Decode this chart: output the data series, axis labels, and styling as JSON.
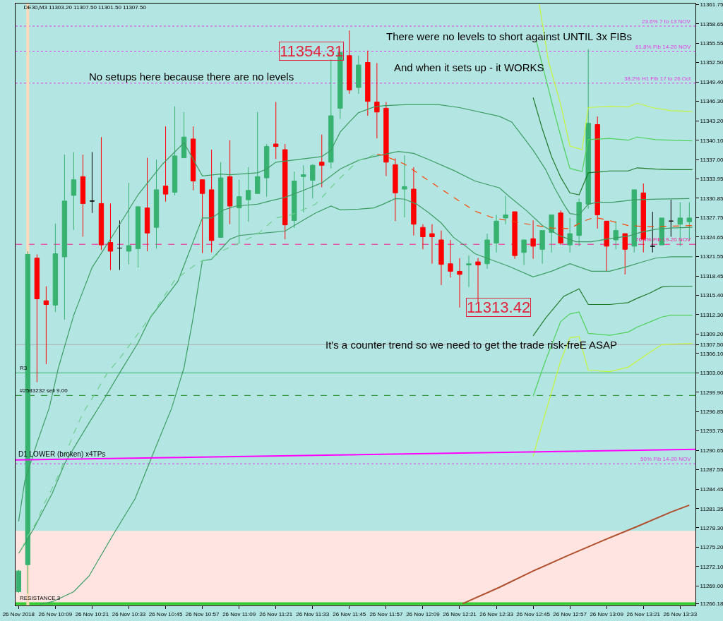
{
  "chart_data": {
    "type": "candlestick",
    "title": "DE30,M3 11303.20 11307.50 11301.50 11307.50",
    "x": [
      "2018-11-26T09:57",
      "2018-11-26T10:00",
      "2018-11-26T10:03",
      "2018-11-26T10:06",
      "2018-11-26T10:09",
      "2018-11-26T10:12",
      "2018-11-26T10:15",
      "2018-11-26T10:18",
      "2018-11-26T10:21",
      "2018-11-26T10:24",
      "2018-11-26T10:27",
      "2018-11-26T10:30",
      "2018-11-26T10:33",
      "2018-11-26T10:36",
      "2018-11-26T10:39",
      "2018-11-26T10:42",
      "2018-11-26T10:45",
      "2018-11-26T10:48",
      "2018-11-26T10:51",
      "2018-11-26T10:54",
      "2018-11-26T10:57",
      "2018-11-26T11:00",
      "2018-11-26T11:03",
      "2018-11-26T11:06",
      "2018-11-26T11:09",
      "2018-11-26T11:12",
      "2018-11-26T11:15",
      "2018-11-26T11:18",
      "2018-11-26T11:21",
      "2018-11-26T11:24",
      "2018-11-26T11:27",
      "2018-11-26T11:30",
      "2018-11-26T11:33",
      "2018-11-26T11:36",
      "2018-11-26T11:39",
      "2018-11-26T11:42",
      "2018-11-26T11:45",
      "2018-11-26T11:48",
      "2018-11-26T11:51",
      "2018-11-26T11:54",
      "2018-11-26T11:57",
      "2018-11-26T12:00",
      "2018-11-26T12:03",
      "2018-11-26T12:06",
      "2018-11-26T12:09",
      "2018-11-26T12:12",
      "2018-11-26T12:15",
      "2018-11-26T12:18",
      "2018-11-26T12:21",
      "2018-11-26T12:24",
      "2018-11-26T12:27",
      "2018-11-26T12:30",
      "2018-11-26T12:33",
      "2018-11-26T12:36",
      "2018-11-26T12:39",
      "2018-11-26T12:42",
      "2018-11-26T12:45",
      "2018-11-26T12:48",
      "2018-11-26T12:51",
      "2018-11-26T12:54",
      "2018-11-26T12:57",
      "2018-11-26T13:00",
      "2018-11-26T13:03",
      "2018-11-26T13:06",
      "2018-11-26T13:09",
      "2018-11-26T13:12",
      "2018-11-26T13:15",
      "2018-11-26T13:18",
      "2018-11-26T13:21",
      "2018-11-26T13:24",
      "2018-11-26T13:27",
      "2018-11-26T13:30",
      "2018-11-26T13:33",
      "2018-11-26T13:36"
    ],
    "ohlc": [
      [
        11268.1,
        11271.6,
        11267.9,
        11271.4
      ],
      [
        11272.4,
        11322.4,
        11267.8,
        11321.9
      ],
      [
        11321.3,
        11321.9,
        11301.5,
        11314.8
      ],
      [
        11314.5,
        11316.8,
        11304.4,
        11313.9
      ],
      [
        11313.8,
        11326.8,
        11312.7,
        11322.0
      ],
      [
        11321.5,
        11337.8,
        11311.5,
        11330.4
      ],
      [
        11331.3,
        11338.2,
        11325.8,
        11333.8
      ],
      [
        11334.3,
        11337.8,
        11324.7,
        11330.0
      ],
      [
        11330.4,
        11338.2,
        11328.5,
        11330.4
      ],
      [
        11330.0,
        11340.6,
        11322.6,
        11323.4
      ],
      [
        11323.8,
        11330.0,
        11319.4,
        11322.4
      ],
      [
        11322.9,
        11327.3,
        11319.4,
        11322.9
      ],
      [
        11322.4,
        11333.3,
        11320.3,
        11323.3
      ],
      [
        11322.8,
        11329.6,
        11319.8,
        11329.5
      ],
      [
        11329.3,
        11337.3,
        11322.4,
        11325.3
      ],
      [
        11326.2,
        11337.0,
        11322.8,
        11332.2
      ],
      [
        11332.8,
        11342.3,
        11330.3,
        11331.5
      ],
      [
        11331.8,
        11345.5,
        11331.3,
        11337.6
      ],
      [
        11337.3,
        11344.6,
        11337.3,
        11340.6
      ],
      [
        11340.3,
        11342.3,
        11332.1,
        11333.6
      ],
      [
        11333.8,
        11333.8,
        11322.1,
        11331.6
      ],
      [
        11332.2,
        11338.6,
        11322.2,
        11324.1
      ],
      [
        11324.6,
        11336.6,
        11324.6,
        11334.1
      ],
      [
        11334.3,
        11340.1,
        11326.7,
        11329.6
      ],
      [
        11329.3,
        11333.8,
        11323.7,
        11331.1
      ],
      [
        11330.6,
        11335.8,
        11327.1,
        11332.1
      ],
      [
        11331.6,
        11344.6,
        11331.6,
        11334.3
      ],
      [
        11334.1,
        11339.5,
        11331.1,
        11339.1
      ],
      [
        11339.5,
        11346.2,
        11337.1,
        11339.1
      ],
      [
        11338.6,
        11339.5,
        11324.3,
        11326.6
      ],
      [
        11327.3,
        11335.1,
        11326.1,
        11333.6
      ],
      [
        11334.3,
        11336.1,
        11328.6,
        11334.6
      ],
      [
        11333.7,
        11336.3,
        11330.8,
        11336.1
      ],
      [
        11336.6,
        11341.0,
        11332.6,
        11336.1
      ],
      [
        11336.6,
        11353.0,
        11335.6,
        11344.0
      ],
      [
        11345.2,
        11354.31,
        11343.5,
        11354.1
      ],
      [
        11353.6,
        11357.6,
        11347.5,
        11348.1
      ],
      [
        11348.5,
        11353.6,
        11347.5,
        11352.1
      ],
      [
        11352.5,
        11354.4,
        11344.0,
        11346.3
      ],
      [
        11346.2,
        11352.4,
        11340.4,
        11344.6
      ],
      [
        11345.2,
        11346.2,
        11334.4,
        11336.6
      ],
      [
        11336.2,
        11337.2,
        11327.2,
        11331.7
      ],
      [
        11332.3,
        11337.7,
        11327.8,
        11332.7
      ],
      [
        11332.3,
        11335.8,
        11324.9,
        11326.7
      ],
      [
        11326.2,
        11326.7,
        11322.7,
        11324.7
      ],
      [
        11325.2,
        11326.7,
        11320.4,
        11324.7
      ],
      [
        11324.2,
        11325.7,
        11317.0,
        11320.3
      ],
      [
        11320.4,
        11324.2,
        11318.2,
        11319.2
      ],
      [
        11319.2,
        11321.3,
        11313.42,
        11318.7
      ],
      [
        11320.2,
        11321.7,
        11316.7,
        11320.4
      ],
      [
        11320.7,
        11321.3,
        11314.2,
        11320.2
      ],
      [
        11320.4,
        11325.2,
        11319.6,
        11324.2
      ],
      [
        11323.7,
        11328.2,
        11322.2,
        11327.2
      ],
      [
        11327.7,
        11331.2,
        11326.7,
        11328.2
      ],
      [
        11328.7,
        11328.7,
        11321.2,
        11321.7
      ],
      [
        11322.2,
        11324.2,
        11320.2,
        11324.2
      ],
      [
        11324.4,
        11327.3,
        11321.2,
        11323.2
      ],
      [
        11322.7,
        11325.7,
        11320.4,
        11325.7
      ],
      [
        11325.4,
        11328.2,
        11322.2,
        11328.2
      ],
      [
        11328.5,
        11328.9,
        11323.4,
        11323.7
      ],
      [
        11323.4,
        11327.7,
        11322.2,
        11325.2
      ],
      [
        11324.9,
        11330.8,
        11323.2,
        11330.2
      ],
      [
        11329.9,
        11354.6,
        11329.2,
        11342.8
      ],
      [
        11342.6,
        11343.9,
        11326.0,
        11328.2
      ],
      [
        11327.2,
        11327.2,
        11319.2,
        11323.2
      ],
      [
        11324.2,
        11327.2,
        11322.7,
        11325.7
      ],
      [
        11325.2,
        11325.2,
        11318.7,
        11322.7
      ],
      [
        11323.2,
        11332.2,
        11322.2,
        11332.2
      ],
      [
        11331.7,
        11333.2,
        11322.2,
        11324.3
      ],
      [
        11323.2,
        11328.7,
        11322.2,
        11323.2
      ],
      [
        11323.4,
        11327.7,
        11323.4,
        11327.7
      ],
      [
        11327.2,
        11330.6,
        11324.7,
        11327.2
      ],
      [
        11326.7,
        11330.2,
        11323.2,
        11327.7
      ],
      [
        11327.1,
        11330.2,
        11324.1,
        11327.7
      ]
    ],
    "colors": [
      "#38b270",
      "#38b270",
      "#ff0000",
      "#ff0000",
      "#38b270",
      "#38b270",
      "#38b270",
      "#ff0000",
      "#000000",
      "#ff0000",
      "#ff0000",
      "#000000",
      "#38b270",
      "#38b270",
      "#ff0000",
      "#38b270",
      "#ff0000",
      "#38b270",
      "#38b270",
      "#ff0000",
      "#ff0000",
      "#ff0000",
      "#38b270",
      "#ff0000",
      "#38b270",
      "#38b270",
      "#38b270",
      "#38b270",
      "#ff0000",
      "#ff0000",
      "#38b270",
      "#38b270",
      "#38b270",
      "#ff0000",
      "#38b270",
      "#38b270",
      "#ff0000",
      "#38b270",
      "#ff0000",
      "#ff0000",
      "#ff0000",
      "#ff0000",
      "#38b270",
      "#ff0000",
      "#ff0000",
      "#ff0000",
      "#ff0000",
      "#ff0000",
      "#ff0000",
      "#38b270",
      "#ff0000",
      "#38b270",
      "#38b270",
      "#38b270",
      "#ff0000",
      "#38b270",
      "#ff0000",
      "#38b270",
      "#38b270",
      "#ff0000",
      "#38b270",
      "#38b270",
      "#38b270",
      "#ff0000",
      "#ff0000",
      "#38b270",
      "#ff0000",
      "#38b270",
      "#ff0000",
      "#000000",
      "#38b270",
      "#000000",
      "#38b270",
      "#38b270"
    ],
    "series": [
      {
        "type": "line",
        "color": "#3d9c62",
        "x": [
          "2018-11-26T09:57",
          "2018-11-26T09:59",
          "2018-11-26T10:03",
          "2018-11-26T10:07",
          "2018-11-26T10:10",
          "2018-11-26T10:15",
          "2018-11-26T10:21",
          "2018-11-26T10:28",
          "2018-11-26T10:36",
          "2018-11-26T10:44",
          "2018-11-26T10:51",
          "2018-11-26T10:57",
          "2018-11-26T11:03",
          "2018-11-26T11:06",
          "2018-11-26T11:15",
          "2018-11-26T11:18",
          "2018-11-26T11:21",
          "2018-11-26T11:36",
          "2018-11-26T11:39",
          "2018-11-26T11:42",
          "2018-11-26T11:45",
          "2018-11-26T11:48",
          "2018-11-26T11:53",
          "2018-11-26T11:56",
          "2018-11-26T12:04",
          "2018-11-26T12:14",
          "2018-11-26T12:21",
          "2018-11-26T12:34",
          "2018-11-26T12:38",
          "2018-11-26T12:41",
          "2018-11-26T12:45",
          "2018-11-26T12:49",
          "2018-11-26T12:52",
          "2018-11-26T12:55",
          "2018-11-26T12:57",
          "2018-11-26T13:00",
          "2018-11-26T13:03",
          "2018-11-26T13:06",
          "2018-11-26T13:11",
          "2018-11-26T13:18",
          "2018-11-26T13:26",
          "2018-11-26T13:36"
        ],
        "values": [
          11279.3,
          11285.7,
          11291.8,
          11297.4,
          11303.8,
          11312.2,
          11319.8,
          11325.1,
          11331.4,
          11336.3,
          11339.7,
          11334.4,
          11334.7,
          11334.6,
          11334.9,
          11335.5,
          11336.6,
          11337.5,
          11338.5,
          11341.4,
          11343.0,
          11344.5,
          11345.4,
          11345.6,
          11345.8,
          11345.8,
          11345.3,
          11343.9,
          11343.0,
          11341.1,
          11338.5,
          11335.5,
          11332.5,
          11329.9,
          11328.4,
          11328.2,
          11329.9,
          11330.2,
          11330.2,
          11330.6,
          11330.7,
          11330.8
        ]
      },
      {
        "type": "line",
        "color": "#3d9c62",
        "x": [
          "2018-11-26T09:57",
          "2018-11-26T09:59",
          "2018-11-26T10:02",
          "2018-11-26T10:05",
          "2018-11-26T10:08",
          "2018-11-26T10:12",
          "2018-11-26T10:16",
          "2018-11-26T10:20",
          "2018-11-26T10:25",
          "2018-11-26T10:30",
          "2018-11-26T10:36",
          "2018-11-26T10:40",
          "2018-11-26T10:49",
          "2018-11-26T10:57",
          "2018-11-26T11:00",
          "2018-11-26T11:04",
          "2018-11-26T11:08",
          "2018-11-26T11:15",
          "2018-11-26T11:19",
          "2018-11-26T11:24",
          "2018-11-26T11:30",
          "2018-11-26T11:36",
          "2018-11-26T11:42",
          "2018-11-26T11:48",
          "2018-11-26T11:53",
          "2018-11-26T12:01",
          "2018-11-26T12:06",
          "2018-11-26T12:11",
          "2018-11-26T12:19",
          "2018-11-26T12:26",
          "2018-11-26T12:34",
          "2018-11-26T12:37",
          "2018-11-26T12:43",
          "2018-11-26T12:48",
          "2018-11-26T12:54",
          "2018-11-26T12:59",
          "2018-11-26T13:04",
          "2018-11-26T13:10",
          "2018-11-26T13:16",
          "2018-11-26T13:20",
          "2018-11-26T13:25",
          "2018-11-26T13:30",
          "2018-11-26T13:37"
        ],
        "values": [
          11274.2,
          11275.7,
          11278.2,
          11281.0,
          11283.8,
          11288.5,
          11291.8,
          11295.0,
          11298.9,
          11303.0,
          11307.8,
          11311.8,
          11317.6,
          11327.7,
          11327.7,
          11329.0,
          11329.6,
          11329.9,
          11330.4,
          11331.0,
          11332.1,
          11333.3,
          11335.5,
          11336.9,
          11337.5,
          11338.3,
          11338.0,
          11337.0,
          11335.3,
          11333.6,
          11332.5,
          11331.2,
          11328.8,
          11326.5,
          11324.8,
          11323.9,
          11323.9,
          11324.4,
          11324.8,
          11325.4,
          11325.9,
          11326.1,
          11326.2
        ]
      },
      {
        "type": "line",
        "color": "#3d9c62",
        "x": [
          "2018-11-26T10:04",
          "2018-11-26T10:08",
          "2018-11-26T10:15",
          "2018-11-26T10:20",
          "2018-11-26T10:28",
          "2018-11-26T10:35",
          "2018-11-26T10:41",
          "2018-11-26T10:47",
          "2018-11-26T10:51",
          "2018-11-26T10:54",
          "2018-11-26T10:57",
          "2018-11-26T11:00",
          "2018-11-26T11:06",
          "2018-11-26T11:09",
          "2018-11-26T11:15",
          "2018-11-26T11:24",
          "2018-11-26T11:27",
          "2018-11-26T11:34",
          "2018-11-26T11:39",
          "2018-11-26T11:42",
          "2018-11-26T11:48",
          "2018-11-26T11:53",
          "2018-11-26T11:56",
          "2018-11-26T12:00",
          "2018-11-26T12:03",
          "2018-11-26T12:07",
          "2018-11-26T12:11",
          "2018-11-26T12:15",
          "2018-11-26T12:19",
          "2018-11-26T12:23",
          "2018-11-26T12:26",
          "2018-11-26T12:32",
          "2018-11-26T12:37",
          "2018-11-26T12:45",
          "2018-11-26T12:51",
          "2018-11-26T12:57",
          "2018-11-26T13:04",
          "2018-11-26T13:10",
          "2018-11-26T13:16",
          "2018-11-26T13:20",
          "2018-11-26T13:25",
          "2018-11-26T13:30",
          "2018-11-26T13:37"
        ],
        "values": [
          11266.1,
          11266.5,
          11268.1,
          11270.6,
          11277.3,
          11282.9,
          11290.2,
          11297.4,
          11303.8,
          11311.8,
          11320.9,
          11321.1,
          11324.3,
          11324.9,
          11325.2,
          11325.6,
          11326.5,
          11328.5,
          11329.6,
          11329.0,
          11329.1,
          11329.3,
          11329.9,
          11330.8,
          11330.7,
          11329.9,
          11328.5,
          11326.9,
          11324.6,
          11323.2,
          11322.0,
          11320.9,
          11320.0,
          11318.3,
          11319.2,
          11320.4,
          11319.2,
          11319.2,
          11320.0,
          11320.6,
          11321.3,
          11321.5,
          11321.5
        ]
      },
      {
        "type": "line",
        "color": "#6fcf8f",
        "line_style": "dashed",
        "x": [
          "2018-11-26T09:58",
          "2018-11-26T10:00",
          "2018-11-26T10:03",
          "2018-11-26T10:05",
          "2018-11-26T10:08",
          "2018-11-26T10:11",
          "2018-11-26T10:12",
          "2018-11-26T10:15",
          "2018-11-26T10:18",
          "2018-11-26T10:22",
          "2018-11-26T10:26",
          "2018-11-26T10:30",
          "2018-11-26T10:35",
          "2018-11-26T10:41",
          "2018-11-26T10:48",
          "2018-11-26T10:56",
          "2018-11-26T11:00",
          "2018-11-26T11:04",
          "2018-11-26T11:09",
          "2018-11-26T11:15",
          "2018-11-26T11:21",
          "2018-11-26T11:26",
          "2018-11-26T11:34",
          "2018-11-26T11:41",
          "2018-11-26T11:48",
          "2018-11-26T11:54"
        ],
        "values": [
          11274.9,
          11277.0,
          11279.3,
          11281.8,
          11284.6,
          11287.7,
          11289.7,
          11293.3,
          11296.6,
          11299.7,
          11303.0,
          11305.3,
          11308.6,
          11312.6,
          11317.8,
          11320.7,
          11321.3,
          11322.6,
          11323.7,
          11325.1,
          11327.7,
          11328.2,
          11329.9,
          11333.6,
          11336.9,
          11337.9
        ]
      },
      {
        "type": "line",
        "color": "#ff4500",
        "line_style": "dashed",
        "x": [
          "2018-11-26T11:54",
          "2018-11-26T11:56",
          "2018-11-26T12:03",
          "2018-11-26T12:11",
          "2018-11-26T12:19",
          "2018-11-26T12:26",
          "2018-11-26T12:32",
          "2018-11-26T12:41",
          "2018-11-26T12:51",
          "2018-11-26T12:57",
          "2018-11-26T13:01",
          "2018-11-26T13:05",
          "2018-11-26T13:09",
          "2018-11-26T13:16",
          "2018-11-26T13:23",
          "2018-11-26T13:30",
          "2018-11-26T13:37"
        ],
        "values": [
          11337.9,
          11337.7,
          11336.3,
          11333.6,
          11331.0,
          11328.8,
          11327.7,
          11326.9,
          11326.1,
          11326.0,
          11327.1,
          11327.8,
          11327.4,
          11326.5,
          11326.3,
          11326.4,
          11326.5
        ]
      },
      {
        "type": "line",
        "color": "#c6f53d",
        "x": [
          "2018-11-26T12:47",
          "2018-11-26T12:50",
          "2018-11-26T12:54",
          "2018-11-26T12:57",
          "2018-11-26T13:01",
          "2018-11-26T13:03",
          "2018-11-26T13:10",
          "2018-11-26T13:16",
          "2018-11-26T13:19",
          "2018-11-26T13:24",
          "2018-11-26T13:30",
          "2018-11-26T13:37"
        ],
        "values": [
          11361.8,
          11352.7,
          11345.8,
          11339.2,
          11338.6,
          11345.3,
          11345.5,
          11345.4,
          11346.0,
          11345.3,
          11344.8,
          11344.7
        ]
      },
      {
        "type": "line",
        "color": "#4fd15a",
        "x": [
          "2018-11-26T12:46",
          "2018-11-26T12:49",
          "2018-11-26T12:52",
          "2018-11-26T12:55",
          "2018-11-26T12:57",
          "2018-11-26T13:01",
          "2018-11-26T13:03",
          "2018-11-26T13:10",
          "2018-11-26T13:16",
          "2018-11-26T13:19",
          "2018-11-26T13:25",
          "2018-11-26T13:30",
          "2018-11-26T13:37"
        ],
        "values": [
          11356.0,
          11350.2,
          11344.4,
          11339.0,
          11335.6,
          11335.1,
          11340.2,
          11340.4,
          11340.1,
          11340.6,
          11340.2,
          11340.1,
          11340.0
        ]
      },
      {
        "type": "line",
        "color": "#1f7a2a",
        "x": [
          "2018-11-26T12:45",
          "2018-11-26T12:48",
          "2018-11-26T12:51",
          "2018-11-26T12:54",
          "2018-11-26T12:57",
          "2018-11-26T13:00",
          "2018-11-26T13:03",
          "2018-11-26T13:10",
          "2018-11-26T13:16",
          "2018-11-26T13:19",
          "2018-11-26T13:25",
          "2018-11-26T13:30",
          "2018-11-26T13:37"
        ],
        "values": [
          11346.9,
          11341.9,
          11337.5,
          11334.2,
          11331.7,
          11331.4,
          11334.9,
          11335.2,
          11335.2,
          11335.7,
          11335.5,
          11335.4,
          11335.4
        ]
      },
      {
        "type": "line",
        "color": "#1f7a2a",
        "x": [
          "2018-11-26T12:45",
          "2018-11-26T12:49",
          "2018-11-26T12:55",
          "2018-11-26T13:00",
          "2018-11-26T13:03",
          "2018-11-26T13:10",
          "2018-11-26T13:16",
          "2018-11-26T13:19",
          "2018-11-26T13:23",
          "2018-11-26T13:27",
          "2018-11-26T13:30",
          "2018-11-26T13:37"
        ],
        "values": [
          11308.9,
          11311.7,
          11315.2,
          11316.4,
          11313.9,
          11313.9,
          11314.2,
          11314.9,
          11315.7,
          11316.7,
          11316.8,
          11316.8
        ]
      },
      {
        "type": "line",
        "color": "#4fd15a",
        "x": [
          "2018-11-26T12:45",
          "2018-11-26T12:49",
          "2018-11-26T12:54",
          "2018-11-26T12:57",
          "2018-11-26T13:00",
          "2018-11-26T13:03",
          "2018-11-26T13:10",
          "2018-11-26T13:16",
          "2018-11-26T13:19",
          "2018-11-26T13:24",
          "2018-11-26T13:27",
          "2018-11-26T13:30",
          "2018-11-26T13:37"
        ],
        "values": [
          11299.3,
          11304.9,
          11311.2,
          11312.4,
          11312.7,
          11309.3,
          11309.0,
          11309.5,
          11310.3,
          11311.3,
          11311.9,
          11312.2,
          11312.2
        ]
      },
      {
        "type": "line",
        "color": "#c6f53d",
        "x": [
          "2018-11-26T12:45",
          "2018-11-26T12:49",
          "2018-11-26T12:54",
          "2018-11-26T12:57",
          "2018-11-26T13:00",
          "2018-11-26T13:03",
          "2018-11-26T13:10",
          "2018-11-26T13:16",
          "2018-11-26T13:22",
          "2018-11-26T13:27",
          "2018-11-26T13:37"
        ],
        "values": [
          11289.7,
          11296.6,
          11304.9,
          11308.6,
          11308.8,
          11303.4,
          11303.2,
          11303.9,
          11305.9,
          11307.5,
          11307.7
        ]
      },
      {
        "type": "line",
        "color": "#b0502e",
        "x": [
          "2018-11-26T12:22",
          "2018-11-26T12:34",
          "2018-11-26T12:45",
          "2018-11-26T12:56",
          "2018-11-26T13:08",
          "2018-11-26T13:19",
          "2018-11-26T13:30",
          "2018-11-26T13:36"
        ],
        "values": [
          11266.2,
          11268.8,
          11271.4,
          11273.8,
          11276.3,
          11278.5,
          11280.8,
          11281.9
        ]
      },
      {
        "type": "line",
        "name": "D1 LOWER (broken) x4TPs",
        "color": "#ff00ff",
        "x": [
          "2018-11-26T09:56",
          "2018-11-26T13:38"
        ],
        "values": [
          11289.1,
          11290.8
        ]
      }
    ],
    "ref_lines": [
      {
        "axis": "y",
        "value": 11358.3,
        "label": "23.6% 7 to 13 NOV",
        "color": "#e23de2",
        "line_style": "dotted"
      },
      {
        "axis": "y",
        "value": 11354.3,
        "label": "61.8% Fib 14-20 NOV",
        "color": "#e23de2",
        "line_style": "dotted"
      },
      {
        "axis": "y",
        "value": 11349.2,
        "label": "38.2% H1 Fib 17 to 26 Oct",
        "color": "#e23de2",
        "line_style": "dotted"
      },
      {
        "axis": "y",
        "value": 11323.5,
        "label": "76.4% Fib 19-20 NOV",
        "color": "#ff1493",
        "line_style": "dashed"
      },
      {
        "axis": "y",
        "value": 11288.5,
        "label": "50% Fib 14-20 NOV",
        "color": "#e23de2",
        "line_style": "dotted"
      },
      {
        "axis": "y",
        "value": 11303.0,
        "label": "R3",
        "color": "#3cb371",
        "line_style": "solid"
      },
      {
        "axis": "y",
        "value": 11299.4,
        "label": "#2583232 sell 9.00",
        "color": "#1e8c1e",
        "line_style": "dashed"
      },
      {
        "axis": "y",
        "value": 11307.5,
        "color": "#a9b4b4",
        "line_style": "solid"
      },
      {
        "axis": "y",
        "value": 11266.18,
        "label": "RESISTANCE 3",
        "color": "#32cd32",
        "line_style": "solid"
      },
      {
        "axis": "x",
        "value": "2018-11-26T10:00",
        "color": "#ffdab9",
        "line_style": "solid"
      }
    ],
    "bands": [
      {
        "axis": "y",
        "from": 11265.9,
        "to": 11277.8,
        "color": "#ffe4e1"
      }
    ],
    "annotations": [
      "No setups here because there are no levels",
      "There were no levels to short against UNTIL 3x FIBs",
      "And when it sets up - it WORKS",
      "It's a counter trend so we need to get the trade risk-freE ASAP",
      {
        "text": "11354.31",
        "x": "2018-11-26T11:42",
        "y": 11354.31
      },
      {
        "text": "11313.42",
        "x": "2018-11-26T12:21",
        "y": 11313.42
      }
    ],
    "xlim": [
      "2018-11-26T09:56",
      "2018-11-26T13:38"
    ],
    "ylim": [
      11265.9,
      11361.9
    ],
    "xticks": [
      {
        "value": "2018-11-26T09:57",
        "label": "26 Nov 2018"
      },
      {
        "value": "2018-11-26T10:09",
        "label": "26 Nov 10:09"
      },
      {
        "value": "2018-11-26T10:21",
        "label": "26 Nov 10:21"
      },
      {
        "value": "2018-11-26T10:33",
        "label": "26 Nov 10:33"
      },
      {
        "value": "2018-11-26T10:45",
        "label": "26 Nov 10:45"
      },
      {
        "value": "2018-11-26T10:57",
        "label": "26 Nov 10:57"
      },
      {
        "value": "2018-11-26T11:09",
        "label": "26 Nov 11:09"
      },
      {
        "value": "2018-11-26T11:21",
        "label": "26 Nov 11:21"
      },
      {
        "value": "2018-11-26T11:33",
        "label": "26 Nov 11:33"
      },
      {
        "value": "2018-11-26T11:45",
        "label": "26 Nov 11:45"
      },
      {
        "value": "2018-11-26T11:57",
        "label": "26 Nov 11:57"
      },
      {
        "value": "2018-11-26T12:09",
        "label": "26 Nov 12:09"
      },
      {
        "value": "2018-11-26T12:21",
        "label": "26 Nov 12:21"
      },
      {
        "value": "2018-11-26T12:33",
        "label": "26 Nov 12:33"
      },
      {
        "value": "2018-11-26T12:45",
        "label": "26 Nov 12:45"
      },
      {
        "value": "2018-11-26T12:57",
        "label": "26 Nov 12:57"
      },
      {
        "value": "2018-11-26T13:09",
        "label": "26 Nov 13:09"
      },
      {
        "value": "2018-11-26T13:21",
        "label": "26 Nov 13:21"
      },
      {
        "value": "2018-11-26T13:33",
        "label": "26 Nov 13:33"
      }
    ],
    "yticks": [
      11361.75,
      11358.65,
      11355.55,
      {
        "value": 11352.5,
        "label": "11352.50"
      },
      {
        "value": 11349.4,
        "label": "11349.40"
      },
      {
        "value": 11346.3,
        "label": "11346.30"
      },
      {
        "value": 11343.2,
        "label": "11343.20"
      },
      {
        "value": 11340.1,
        "label": "11340.10"
      },
      {
        "value": 11337.0,
        "label": "11337.00"
      },
      11333.95,
      11330.85,
      11327.75,
      11324.65,
      11321.55,
      11318.45,
      {
        "value": 11315.4,
        "label": "11315.40"
      },
      {
        "value": 11312.3,
        "label": "11312.30"
      },
      {
        "value": 11309.2,
        "label": "11309.20"
      },
      {
        "value": 11307.5,
        "label": "11307.50"
      },
      {
        "value": 11306.1,
        "label": "11306.10"
      },
      {
        "value": 11303.0,
        "label": "11303.00"
      },
      {
        "value": 11299.9,
        "label": "11299.90"
      },
      11296.85,
      11293.75,
      11290.65,
      11287.55,
      11284.45,
      11281.35,
      {
        "value": 11278.3,
        "label": "11278.30"
      },
      {
        "value": 11275.2,
        "label": "11275.20"
      },
      {
        "value": 11272.1,
        "label": "11272.10"
      },
      {
        "value": 11269.0,
        "label": "11269.00"
      },
      11266.18
    ],
    "grid": false,
    "legend": false
  }
}
